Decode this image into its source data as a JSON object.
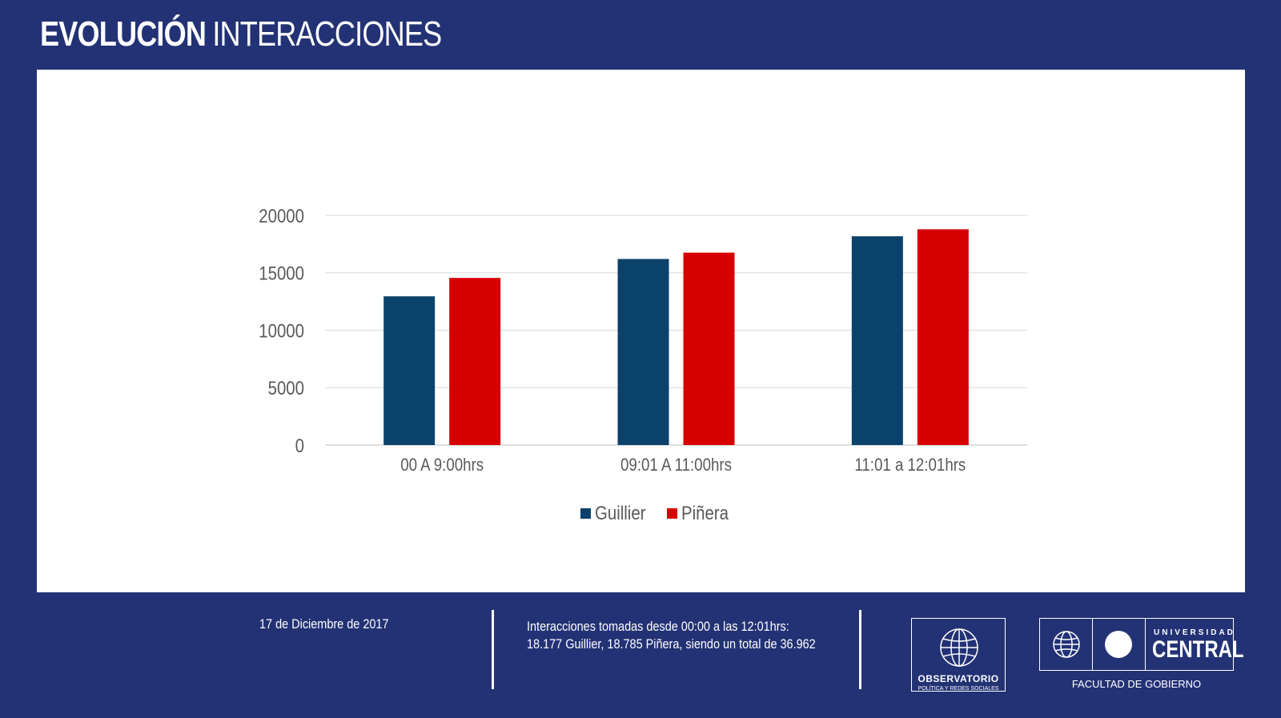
{
  "header": {
    "title_bold": "EVOLUCIÓN",
    "title_light": "INTERACCIONES"
  },
  "footer": {
    "date": "17 de Diciembre de 2017",
    "note_line1": "Interacciones tomadas desde 00:00 a las 12:01hrs:",
    "note_line2": "18.177 Guillier, 18.785 Piñera, siendo un total de 36.962"
  },
  "logos": {
    "observatorio_name": "OBSERVATORIO",
    "observatorio_sub": "POLÍTICA Y REDES SOCIALES",
    "university_small": "UNIVERSIDAD",
    "university_big": "CENTRAL",
    "faculty": "FACULTAD DE GOBIERNO"
  },
  "colors": {
    "background": "#233274",
    "guillier": "#0b426b",
    "pinera": "#d60000",
    "grid": "#d9d9d9"
  },
  "chart_data": {
    "type": "bar",
    "categories": [
      "00 A 9:00hrs",
      "09:01 A 11:00hrs",
      "11:01 a 12:01hrs"
    ],
    "series": [
      {
        "name": "Guillier",
        "color": "#0b426b",
        "values": [
          12950,
          16200,
          18177
        ]
      },
      {
        "name": "Piñera",
        "color": "#d60000",
        "values": [
          14550,
          16750,
          18785
        ]
      }
    ],
    "yticks": [
      0,
      5000,
      10000,
      15000,
      20000
    ],
    "ylim": [
      0,
      20000
    ],
    "title": "",
    "xlabel": "",
    "ylabel": "",
    "grid": true,
    "legend": "bottom-center"
  }
}
